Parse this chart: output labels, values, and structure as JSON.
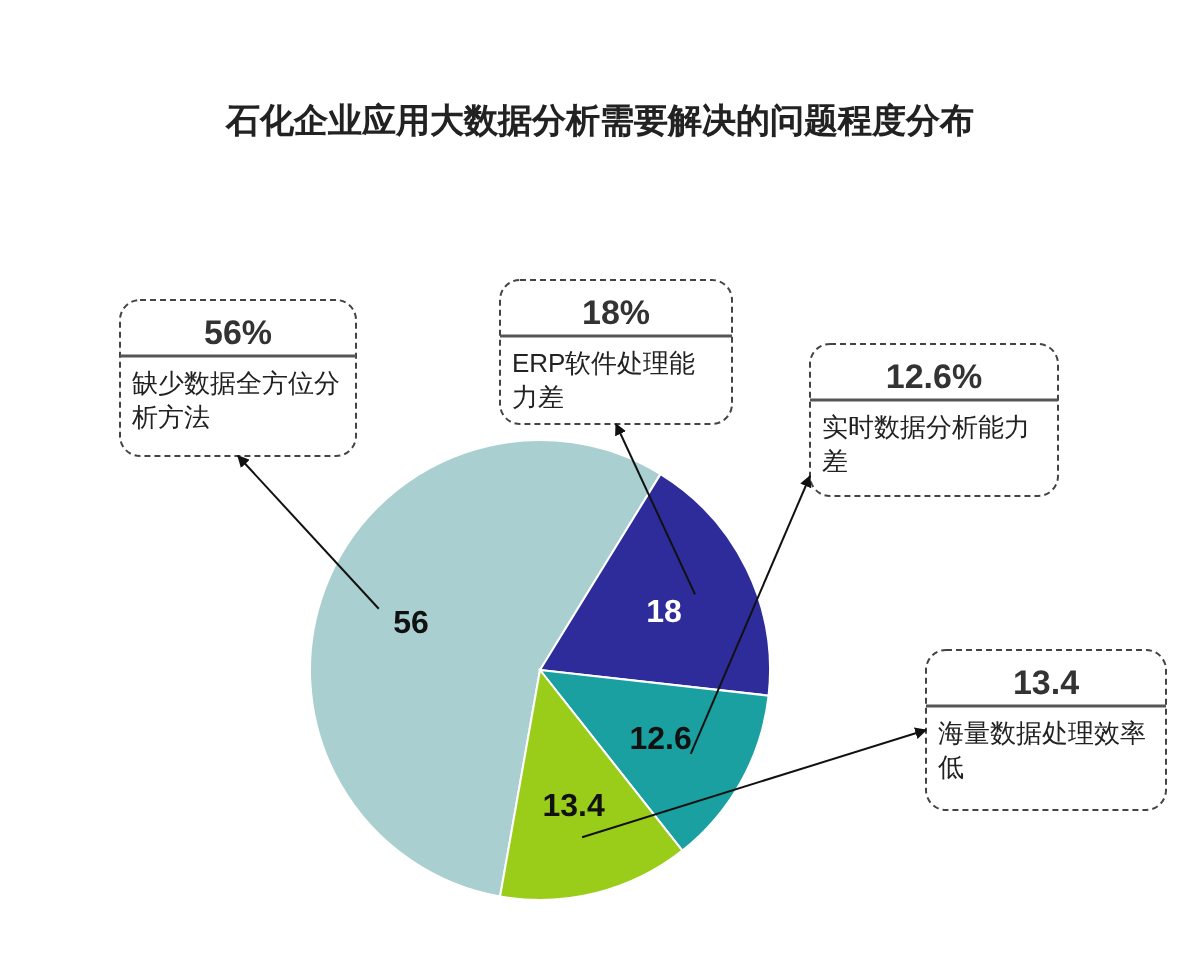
{
  "chart_data": {
    "type": "pie",
    "title": "石化企业应用大数据分析需要解决的问题程度分布",
    "categories": [
      "缺少数据全方位分析方法",
      "ERP软件处理能力差",
      "实时数据分析能力差",
      "海量数据处理效率低"
    ],
    "values": [
      56,
      18,
      12.6,
      13.4
    ],
    "colors": [
      "#a9cfd0",
      "#2e2b9a",
      "#1aa0a0",
      "#9acd1a"
    ],
    "value_labels": [
      "56",
      "18",
      "12.6",
      "13.4"
    ],
    "annotations": [
      "56%",
      "18%",
      "12.6%",
      "13.4"
    ]
  }
}
